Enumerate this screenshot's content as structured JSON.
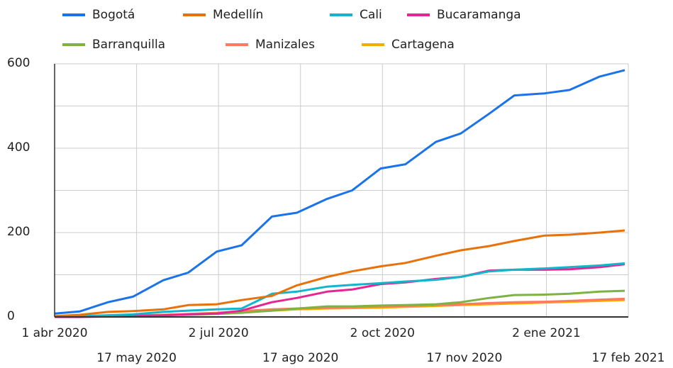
{
  "chart_data": {
    "type": "line",
    "x": [
      "2020-04-01",
      "2020-04-15",
      "2020-05-01",
      "2020-05-15",
      "2020-06-01",
      "2020-06-15",
      "2020-07-01",
      "2020-07-15",
      "2020-08-01",
      "2020-08-15",
      "2020-09-01",
      "2020-09-15",
      "2020-10-01",
      "2020-10-15",
      "2020-11-01",
      "2020-11-15",
      "2020-12-01",
      "2020-12-15",
      "2021-01-01",
      "2021-01-15",
      "2021-02-01",
      "2021-02-15"
    ],
    "series": [
      {
        "name": "Bogotá",
        "color": "#1a73e8",
        "values": [
          8,
          13,
          35,
          48,
          87,
          105,
          155,
          170,
          238,
          247,
          280,
          300,
          352,
          362,
          415,
          435,
          482,
          525,
          530,
          538,
          570,
          585
        ]
      },
      {
        "name": "Medellín",
        "color": "#e8710a",
        "values": [
          2,
          5,
          12,
          14,
          18,
          28,
          30,
          40,
          50,
          75,
          95,
          108,
          120,
          128,
          145,
          158,
          168,
          180,
          193,
          195,
          200,
          205
        ]
      },
      {
        "name": "Cali",
        "color": "#12b5cb",
        "values": [
          1,
          2,
          4,
          6,
          12,
          15,
          18,
          20,
          55,
          60,
          72,
          76,
          80,
          84,
          88,
          95,
          108,
          112,
          115,
          118,
          122,
          127
        ]
      },
      {
        "name": "Bucaramanga",
        "color": "#e52592",
        "values": [
          0,
          0,
          1,
          2,
          4,
          6,
          8,
          15,
          35,
          45,
          60,
          65,
          78,
          82,
          90,
          95,
          110,
          112,
          112,
          113,
          118,
          125
        ]
      },
      {
        "name": "Barranquilla",
        "color": "#7cb342",
        "values": [
          0,
          1,
          2,
          3,
          4,
          5,
          7,
          10,
          15,
          20,
          25,
          25,
          27,
          28,
          30,
          35,
          45,
          52,
          53,
          55,
          60,
          62
        ]
      },
      {
        "name": "Manizales",
        "color": "#ff7a5c",
        "values": [
          0,
          1,
          2,
          3,
          5,
          7,
          10,
          14,
          18,
          20,
          22,
          23,
          25,
          26,
          28,
          30,
          33,
          35,
          36,
          38,
          41,
          43
        ]
      },
      {
        "name": "Cartagena",
        "color": "#f9ab00",
        "values": [
          0,
          1,
          2,
          3,
          4,
          6,
          8,
          12,
          15,
          18,
          20,
          21,
          22,
          24,
          26,
          28,
          30,
          32,
          34,
          36,
          38,
          40
        ]
      }
    ],
    "xlim": [
      "2020-04-01",
      "2021-02-17"
    ],
    "xticks": [
      {
        "value": "2020-04-01",
        "label": "1 abr 2020"
      },
      {
        "value": "2020-05-17",
        "label": "17 may 2020"
      },
      {
        "value": "2020-07-02",
        "label": "2 jul 2020"
      },
      {
        "value": "2020-08-17",
        "label": "17 ago 2020"
      },
      {
        "value": "2020-10-02",
        "label": "2 oct 2020"
      },
      {
        "value": "2020-11-17",
        "label": "17 nov 2020"
      },
      {
        "value": "2021-01-02",
        "label": "2 ene 2021"
      },
      {
        "value": "2021-02-17",
        "label": "17 feb 2021"
      }
    ],
    "ylim": [
      0,
      600
    ],
    "yticks": [
      0,
      200,
      400,
      600
    ],
    "y_minor_ticks": [
      100,
      300,
      500
    ],
    "grid": true,
    "legend": "top"
  }
}
